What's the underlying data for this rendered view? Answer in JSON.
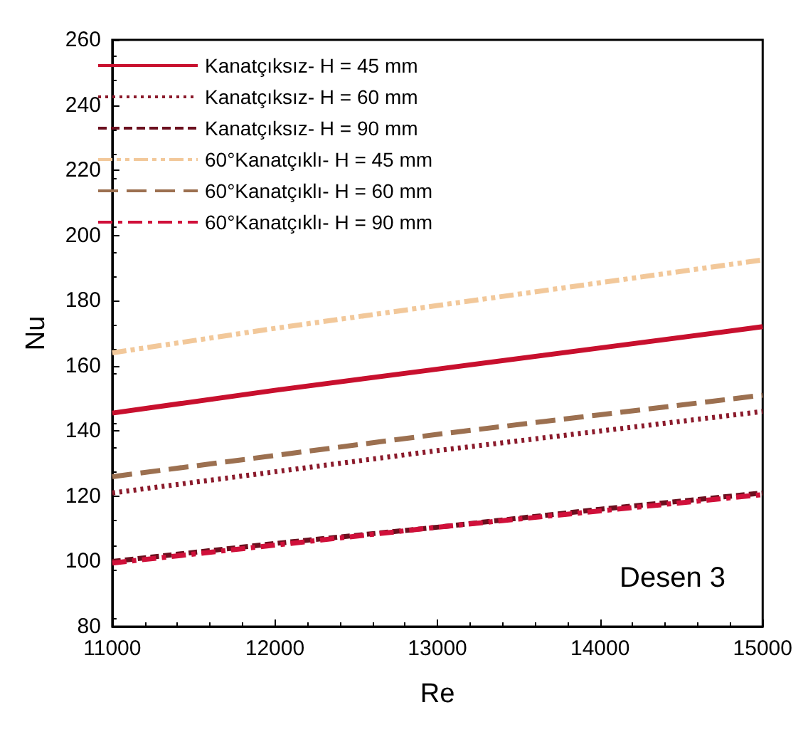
{
  "chart_data": {
    "type": "line",
    "xlabel": "Re",
    "ylabel": "Nu",
    "x": [
      11000,
      12000,
      13000,
      14000,
      15000
    ],
    "series": [
      {
        "name": "Kanatçıksız- H = 45 mm",
        "color": "#c8102e",
        "line_style": "solid",
        "values": [
          145.5,
          152.5,
          159,
          165.5,
          172
        ]
      },
      {
        "name": "Kanatçıksız- H = 60 mm",
        "color": "#8b1a2b",
        "line_style": "dotted",
        "values": [
          121,
          127.5,
          134,
          140,
          146
        ]
      },
      {
        "name": "Kanatçıksız- H = 90 mm",
        "color": "#6b0f1e",
        "line_style": "dashed",
        "values": [
          100,
          105.5,
          110.5,
          116,
          121
        ]
      },
      {
        "name": "60°Kanatçıklı- H = 45 mm",
        "color": "#f2c89a",
        "line_style": "dashdotdot",
        "values": [
          164,
          171.5,
          178.5,
          185.5,
          192.5
        ]
      },
      {
        "name": "60°Kanatçıklı- H = 60 mm",
        "color": "#9c7050",
        "line_style": "longdash",
        "values": [
          126,
          132.5,
          139,
          145,
          151
        ]
      },
      {
        "name": "60°Kanatçıklı- H = 90 mm",
        "color": "#d0103a",
        "line_style": "dashdot",
        "values": [
          99.5,
          105,
          110.5,
          115.5,
          120.5
        ]
      }
    ],
    "xlim": [
      11000,
      15000
    ],
    "xticks": [
      11000,
      12000,
      13000,
      14000,
      15000
    ],
    "ylim": [
      80,
      260
    ],
    "yticks": [
      80,
      100,
      120,
      140,
      160,
      180,
      200,
      220,
      240,
      260
    ],
    "grid": false,
    "legend": "top left",
    "marker": "none",
    "annotations": [
      "Desen 3"
    ]
  }
}
